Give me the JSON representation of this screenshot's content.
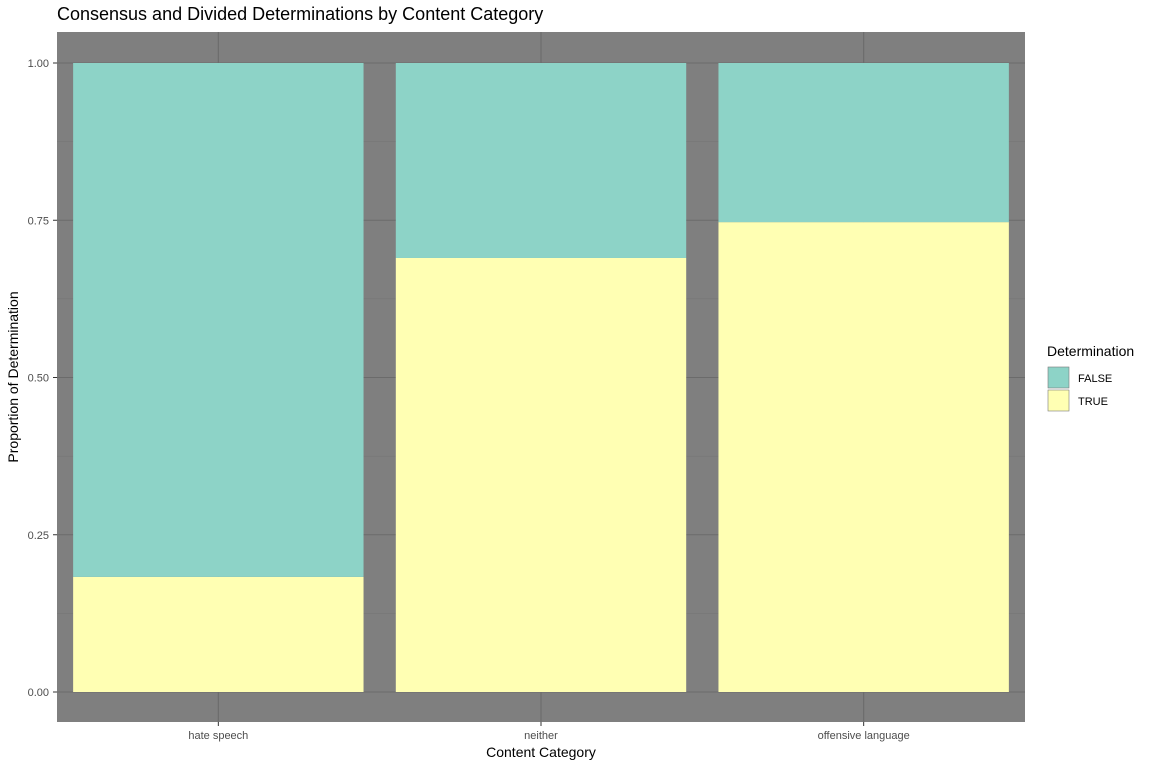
{
  "chart_data": {
    "type": "bar",
    "stacked": true,
    "title": "Consensus and Divided Determinations by Content Category",
    "xlabel": "Content Category",
    "ylabel": "Proportion of Determination",
    "categories": [
      "hate speech",
      "neither",
      "offensive language"
    ],
    "series": [
      {
        "name": "FALSE",
        "color": "#8DD3C7",
        "values": [
          0.817,
          0.31,
          0.253
        ]
      },
      {
        "name": "TRUE",
        "color": "#FFFFB3",
        "values": [
          0.183,
          0.69,
          0.747
        ]
      }
    ],
    "ylim": [
      0,
      1
    ],
    "yticks": [
      0.0,
      0.25,
      0.5,
      0.75,
      1.0
    ],
    "ytick_labels": [
      "0.00",
      "0.25",
      "0.50",
      "0.75",
      "1.00"
    ],
    "grid": true,
    "panel_background": "#7F7F7F",
    "legend": {
      "title": "Determination",
      "placement": "right",
      "entries": [
        "FALSE",
        "TRUE"
      ]
    }
  }
}
